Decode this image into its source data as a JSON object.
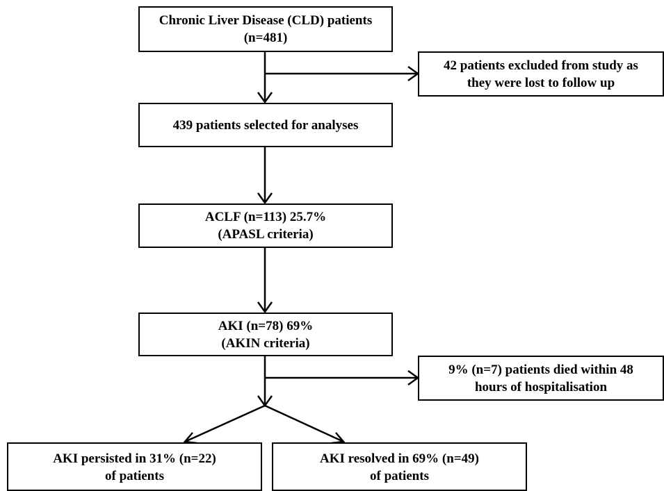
{
  "flowchart": {
    "cld": {
      "line1": "Chronic Liver Disease (CLD) patients",
      "line2": "(n=481)"
    },
    "excluded": {
      "line1": "42 patients excluded from study as",
      "line2": "they were lost to follow up"
    },
    "selected": {
      "line1": "439 patients selected for analyses"
    },
    "aclf": {
      "line1": "ACLF (n=113) 25.7%",
      "line2": "(APASL criteria)"
    },
    "aki": {
      "line1": "AKI (n=78) 69%",
      "line2": "(AKIN criteria)"
    },
    "died": {
      "line1": "9%  (n=7) patients died within 48",
      "line2": "hours of hospitalisation"
    },
    "persisted": {
      "line1": "AKI persisted in 31% (n=22)",
      "line2": "of patients"
    },
    "resolved": {
      "line1": "AKI resolved in 69% (n=49)",
      "line2": "of patients"
    }
  },
  "colors": {
    "line": "#000000",
    "box_border": "#000000",
    "background": "#ffffff"
  }
}
